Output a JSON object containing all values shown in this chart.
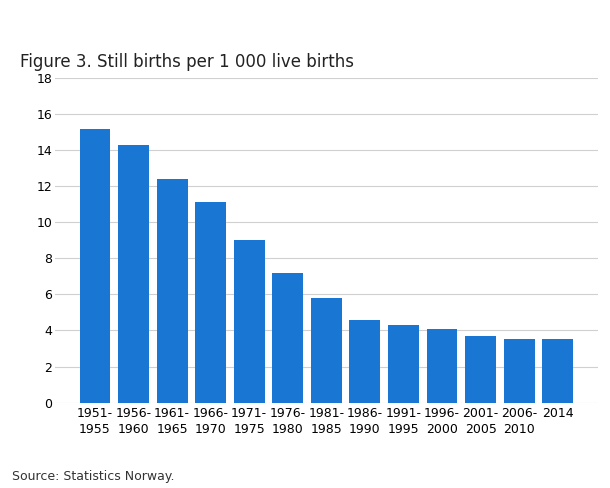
{
  "title": "Figure 3. Still births per 1 000 live births",
  "categories": [
    "1951-\n1955",
    "1956-\n1960",
    "1961-\n1965",
    "1966-\n1970",
    "1971-\n1975",
    "1976-\n1980",
    "1981-\n1985",
    "1986-\n1990",
    "1991-\n1995",
    "1996-\n2000",
    "2001-\n2005",
    "2006-\n2010",
    "2014"
  ],
  "values": [
    15.2,
    14.3,
    12.4,
    11.1,
    9.0,
    7.2,
    5.8,
    4.6,
    4.3,
    4.1,
    3.7,
    3.5,
    3.5
  ],
  "bar_color": "#1976D2",
  "ylim": [
    0,
    18
  ],
  "yticks": [
    0,
    2,
    4,
    6,
    8,
    10,
    12,
    14,
    16,
    18
  ],
  "source": "Source: Statistics Norway.",
  "background_color": "#ffffff",
  "grid_color": "#d0d0d0",
  "title_fontsize": 12,
  "tick_fontsize": 9,
  "source_fontsize": 9
}
